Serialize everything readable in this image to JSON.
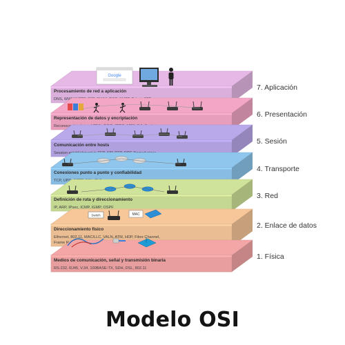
{
  "colors": {
    "l7": "#e6b8e6",
    "l6": "#f3a6c6",
    "l5": "#b9a8ea",
    "l4": "#8fc6ee",
    "l3": "#cfe39a",
    "l2": "#f7c79a",
    "l1": "#f4a6a6",
    "text": "#333333",
    "accent": "#1e66c8"
  },
  "layers": [
    {
      "key": "l7",
      "name": "7. Aplicación",
      "desc": "Procesamiento de red a aplicación",
      "protocols": "DNS, WWW/HTTP, P2P, EMAIL/POP, SMTP, Telnet, FTP"
    },
    {
      "key": "l6",
      "name": "6. Presentación",
      "desc": "Representación de datos y encriptación",
      "protocols": "Reconocer los datos: HTML, DOC, JPEG, MP3, AVI, Sockets"
    },
    {
      "key": "l5",
      "name": "5. Sesión",
      "desc": "Comunicación entre hosts",
      "protocols": "Session establishment in TCP, SIP, RTP, RPC-Named pipes"
    },
    {
      "key": "l4",
      "name": "4. Transporte",
      "desc": "Conexiones punto a punto y confiabilidad",
      "protocols": "TCP, UPD, SCTP, SSL, TLS"
    },
    {
      "key": "l3",
      "name": "3. Red",
      "desc": "Definición de ruta y direccionamiento",
      "protocols": "IP, ARP, IPsec, ICMP, IGMP, OSPF"
    },
    {
      "key": "l2",
      "name": "2. Enlace de datos",
      "desc": "Direccionamiento físico",
      "protocols": "Ethernet, 802.11, MAC/LLC, VALN, ATM, HDP, Fibre Channel,",
      "protocols2": "Frame Relay, HDLC, PPP, Q.921, Token Ring"
    },
    {
      "key": "l1",
      "name": "1. Física",
      "desc": "Medios de comunicación, señal y transmisión binaria",
      "protocols": "RS-232, RJ45, V.34, 100BASE-TX, SDH, DSL, 802.11"
    }
  ],
  "labels": {
    "browser": "Google",
    "mac": "MAC",
    "switch": "Switch"
  },
  "title": "Modelo OSI"
}
